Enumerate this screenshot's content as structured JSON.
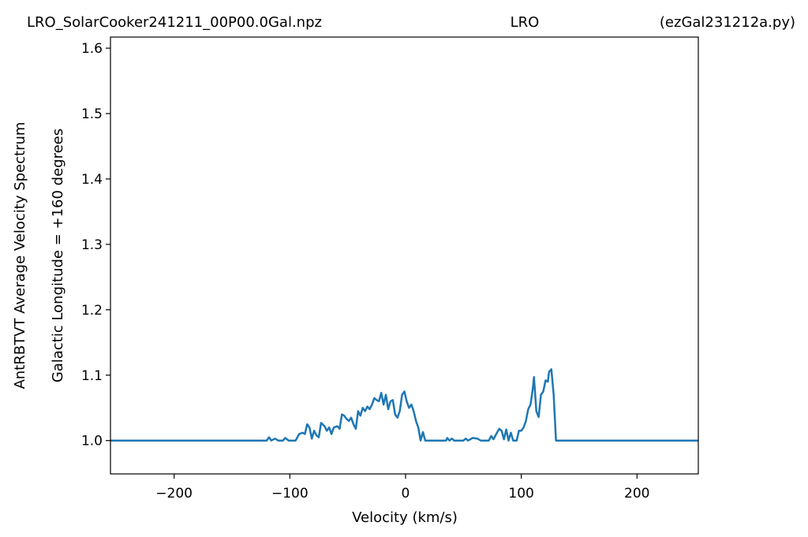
{
  "chart_data": {
    "type": "line",
    "title": "LRO_SolarCooker241211_00P00.0Gal.npz",
    "title_center": "LRO",
    "title_right": "(ezGal231212a.py)",
    "ylabel": [
      "AntRBTVT Average Velocity Spectrum",
      "Galactic Longitude = +160 degrees"
    ],
    "xlabel": "Velocity (km/s)",
    "xlim": [
      -255,
      253
    ],
    "ylim": [
      0.949,
      1.617
    ],
    "xticks": [
      {
        "value": -200,
        "label": "−200"
      },
      {
        "value": -100,
        "label": "−100"
      },
      0,
      100,
      200
    ],
    "yticks": [
      {
        "value": 1.0,
        "label": "1.0"
      },
      {
        "value": 1.1,
        "label": "1.1"
      },
      {
        "value": 1.2,
        "label": "1.2"
      },
      {
        "value": 1.3,
        "label": "1.3"
      },
      {
        "value": 1.4,
        "label": "1.4"
      },
      {
        "value": 1.5,
        "label": "1.5"
      },
      {
        "value": 1.6,
        "label": "1.6"
      }
    ],
    "grid": false,
    "series": [
      {
        "color": "#1f77b4",
        "x": [
          -255,
          -120,
          -118,
          -116,
          -113,
          -110,
          -106,
          -104,
          -101,
          -95,
          -92,
          -89,
          -87,
          -85,
          -83,
          -81,
          -79,
          -77,
          -75,
          -73,
          -70,
          -68,
          -66,
          -64,
          -62,
          -59,
          -57,
          -55,
          -53,
          -51,
          -49,
          -47,
          -45,
          -43,
          -41,
          -39,
          -37,
          -35,
          -33,
          -31,
          -29,
          -27,
          -25,
          -23,
          -21,
          -19,
          -17,
          -15,
          -13,
          -11,
          -9,
          -7,
          -5,
          -3,
          -1,
          1,
          3,
          5,
          7,
          9,
          11,
          13,
          15,
          17,
          20,
          35,
          36,
          38,
          40,
          42,
          50,
          52,
          54,
          58,
          62,
          65,
          72,
          74,
          76,
          79,
          81,
          83,
          85,
          87,
          89,
          91,
          93,
          96,
          98,
          100,
          102,
          104,
          106,
          108,
          110,
          111,
          113,
          115,
          117,
          119,
          121,
          123,
          124,
          126,
          128,
          130,
          253
        ],
        "values": [
          1.0,
          1.0,
          1.005,
          1.0,
          1.003,
          1.0,
          1.0,
          1.004,
          1.0,
          1.0,
          1.01,
          1.012,
          1.01,
          1.025,
          1.02,
          1.003,
          1.015,
          1.008,
          1.005,
          1.027,
          1.022,
          1.015,
          1.02,
          1.01,
          1.02,
          1.022,
          1.018,
          1.04,
          1.038,
          1.033,
          1.03,
          1.035,
          1.025,
          1.018,
          1.045,
          1.038,
          1.05,
          1.045,
          1.052,
          1.048,
          1.055,
          1.065,
          1.062,
          1.06,
          1.073,
          1.055,
          1.07,
          1.048,
          1.06,
          1.062,
          1.04,
          1.035,
          1.045,
          1.07,
          1.075,
          1.06,
          1.05,
          1.055,
          1.045,
          1.03,
          1.02,
          1.0,
          1.013,
          1.0,
          1.0,
          1.0,
          1.004,
          1.0,
          1.003,
          1.0,
          1.0,
          1.003,
          1.0,
          1.004,
          1.003,
          1.0,
          1.0,
          1.007,
          1.002,
          1.012,
          1.018,
          1.015,
          1.002,
          1.017,
          1.0,
          1.012,
          1.0,
          1.0,
          1.015,
          1.015,
          1.02,
          1.03,
          1.048,
          1.055,
          1.08,
          1.097,
          1.045,
          1.036,
          1.07,
          1.075,
          1.092,
          1.09,
          1.105,
          1.109,
          1.07,
          1.0,
          1.0
        ]
      }
    ]
  }
}
